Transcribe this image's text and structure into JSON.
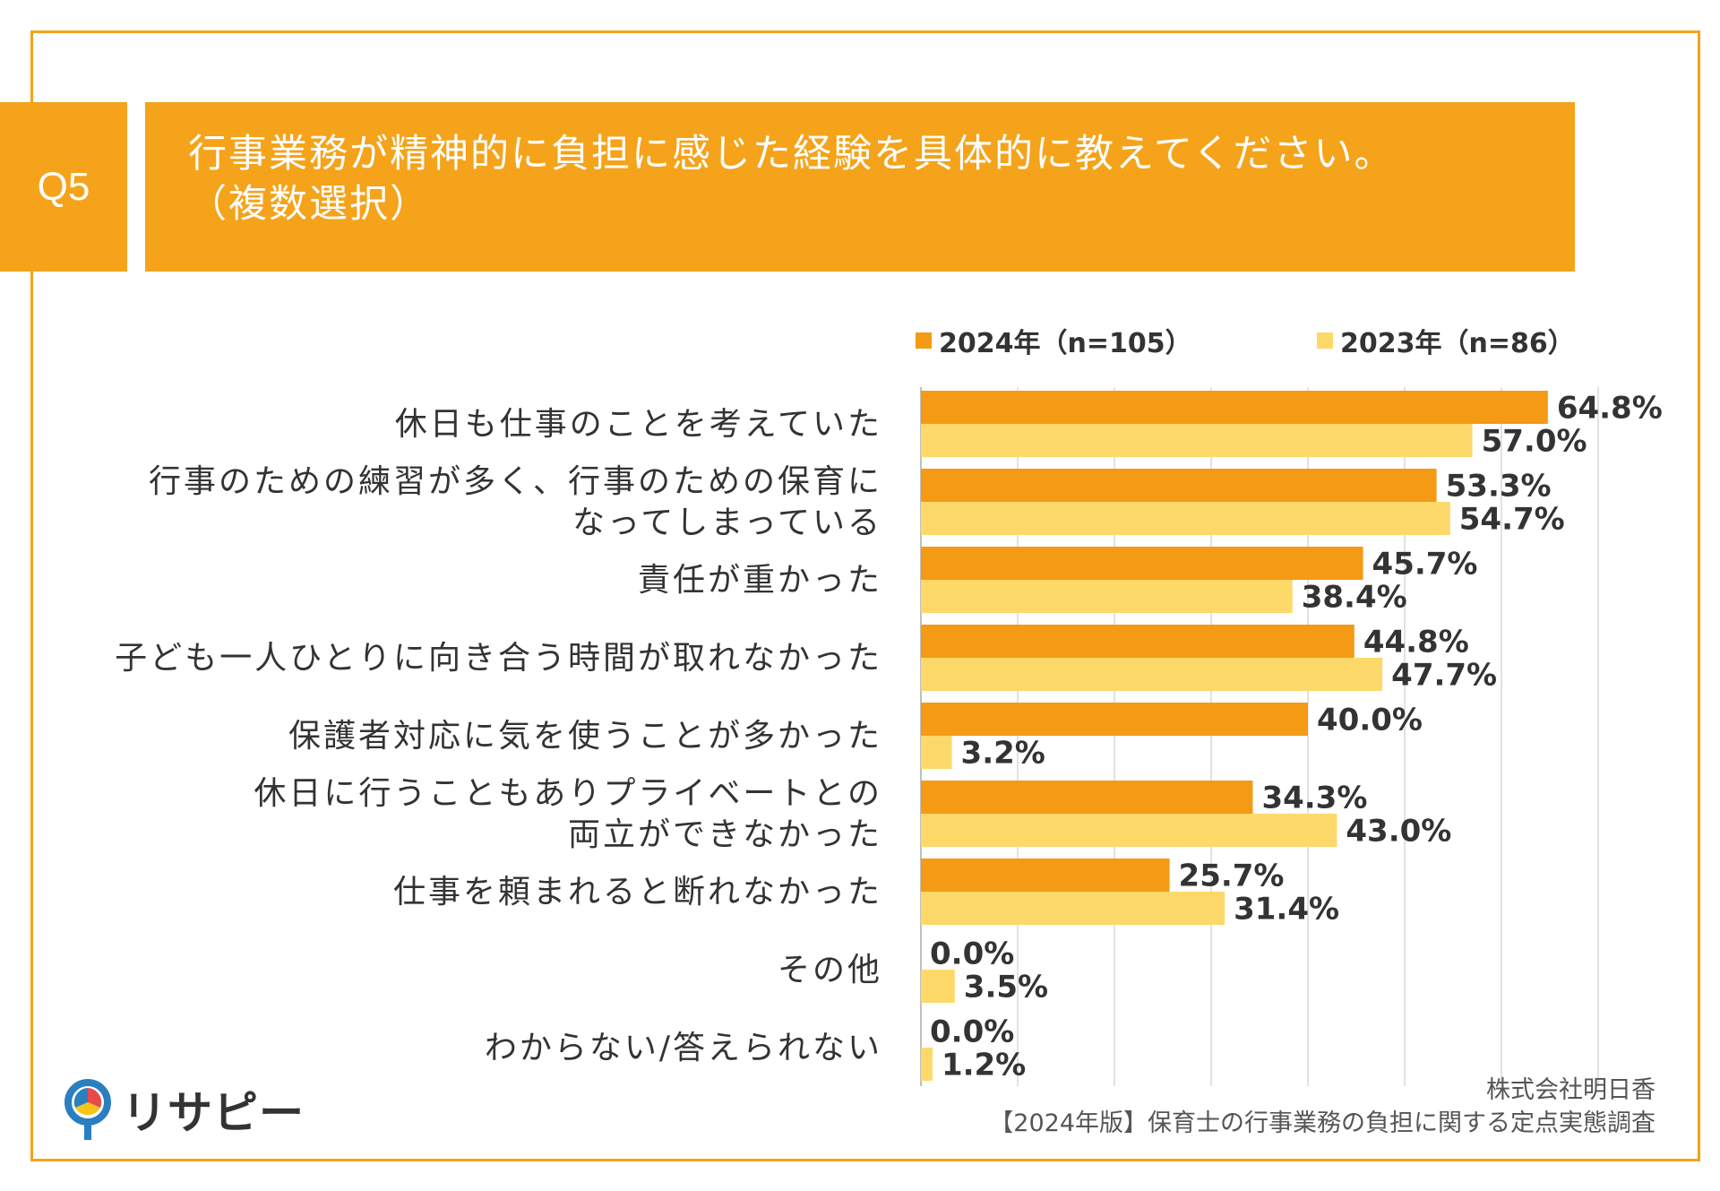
{
  "question": {
    "number": "Q5",
    "title_line1": "行事業務が精神的に負担に感じた経験を具体的に教えてください。",
    "title_line2": "（複数選択）"
  },
  "colors": {
    "accent": "#f5a31a",
    "series_2024": "#f59a14",
    "series_2023": "#fdd96a",
    "frame": "#f5a31a"
  },
  "chart_data": {
    "type": "bar",
    "orientation": "horizontal",
    "categories": [
      [
        "休日も仕事のことを考えていた"
      ],
      [
        "行事のための練習が多く、行事のための保育に",
        "なってしまっている"
      ],
      [
        "責任が重かった"
      ],
      [
        "子ども一人ひとりに向き合う時間が取れなかった"
      ],
      [
        "保護者対応に気を使うことが多かった"
      ],
      [
        "休日に行うこともありプライベートとの",
        "両立ができなかった"
      ],
      [
        "仕事を頼まれると断れなかった"
      ],
      [
        "その他"
      ],
      [
        "わからない/答えられない"
      ]
    ],
    "series": [
      {
        "name": "2024年（n=105）",
        "values": [
          64.8,
          53.3,
          45.7,
          44.8,
          40.0,
          34.3,
          25.7,
          0.0,
          0.0
        ]
      },
      {
        "name": "2023年（n=86）",
        "values": [
          57.0,
          54.7,
          38.4,
          47.7,
          3.2,
          43.0,
          31.4,
          3.5,
          1.2
        ]
      }
    ],
    "value_labels": [
      [
        "64.8%",
        "53.3%",
        "45.7%",
        "44.8%",
        "40.0%",
        "34.3%",
        "25.7%",
        "0.0%",
        "0.0%"
      ],
      [
        "57.0%",
        "54.7%",
        "38.4%",
        "47.7%",
        "3.2%",
        "43.0%",
        "31.4%",
        "3.5%",
        "1.2%"
      ]
    ],
    "xlim": [
      0,
      70
    ],
    "grid": true,
    "legend_position": "top"
  },
  "source": {
    "company": "株式会社明日香",
    "survey": "【2024年版】保育士の行事業務の負担に関する定点実態調査"
  },
  "logo": {
    "text": "リサピー"
  }
}
